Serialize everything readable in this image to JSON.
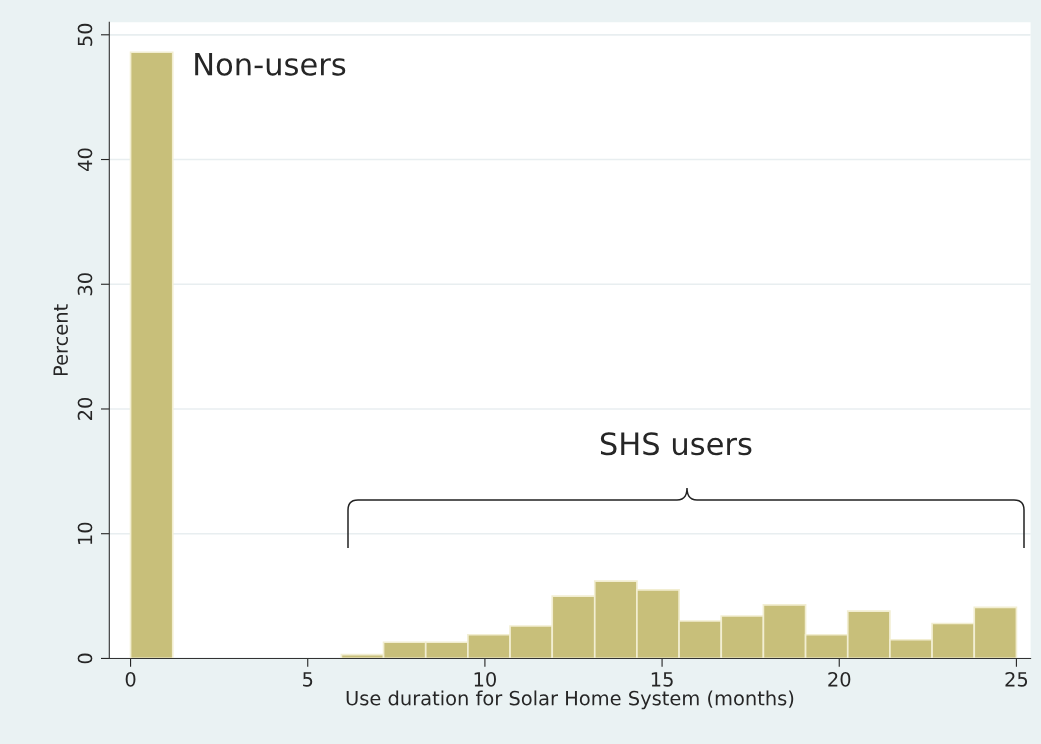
{
  "chart_data": {
    "type": "histogram",
    "xlabel": "Use duration for Solar Home System (months)",
    "ylabel": "Percent",
    "bins": [
      0,
      1.19,
      2.38,
      3.57,
      4.76,
      5.95,
      7.14,
      8.33,
      9.52,
      10.71,
      11.9,
      13.1,
      14.29,
      15.48,
      16.67,
      17.86,
      19.05,
      20.24,
      21.43,
      22.62,
      23.81,
      25
    ],
    "values": [
      48.6,
      0,
      0,
      0,
      0,
      0.3,
      1.3,
      1.3,
      1.9,
      2.6,
      5.0,
      6.2,
      5.5,
      3.0,
      3.4,
      4.3,
      1.9,
      3.8,
      1.5,
      2.8,
      4.1
    ],
    "color": "#c8bf7a",
    "xlim": [
      -0.6,
      25.4
    ],
    "ylim": [
      0,
      51
    ],
    "xticks": [
      0,
      5,
      10,
      15,
      20,
      25
    ],
    "yticks": [
      0,
      10,
      20,
      30,
      40,
      50
    ],
    "grid": "y",
    "annotations": [
      "Non-users",
      "SHS users"
    ]
  }
}
